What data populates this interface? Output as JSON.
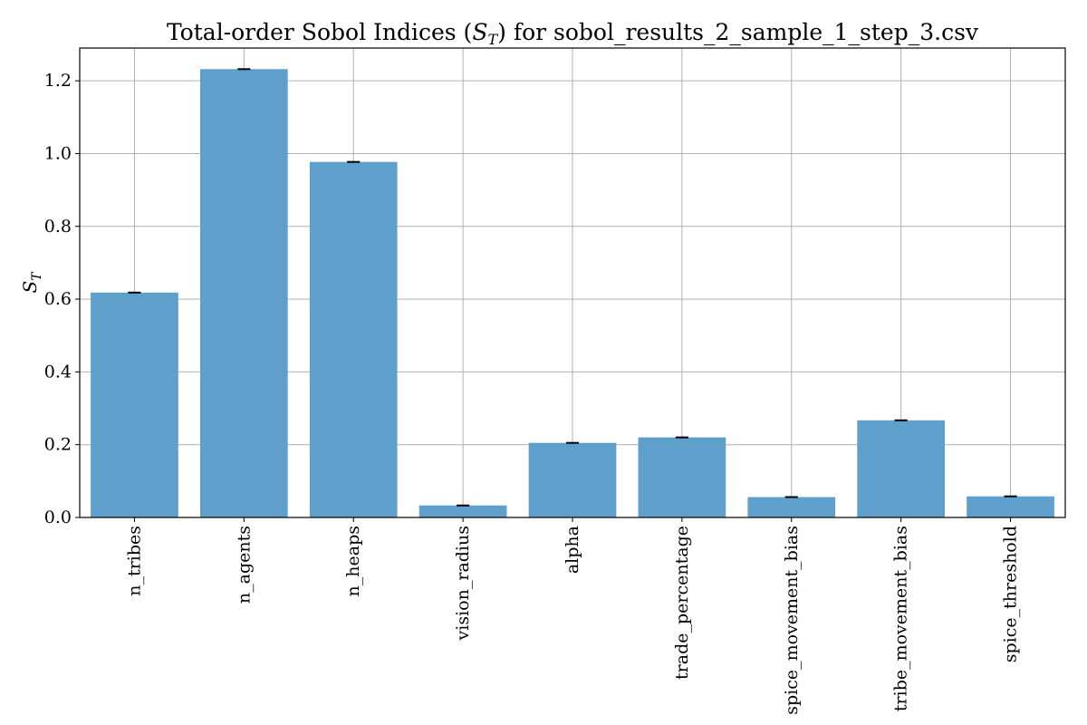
{
  "chart_data": {
    "type": "bar",
    "title": "Total-order Sobol Indices (S_T) for sobol_results_2_sample_1_step_3.csv",
    "ylabel": "S_T",
    "ylim": [
      0,
      1.29
    ],
    "yticks": [
      0.0,
      0.2,
      0.4,
      0.6,
      0.8,
      1.0,
      1.2
    ],
    "ytick_labels": [
      "0.0",
      "0.2",
      "0.4",
      "0.6",
      "0.8",
      "1.0",
      "1.2"
    ],
    "categories": [
      "n_tribes",
      "n_agents",
      "n_heaps",
      "vision_radius",
      "alpha",
      "trade_percentage",
      "spice_movement_bias",
      "tribe_movement_bias",
      "spice_threshold"
    ],
    "values": [
      0.618,
      1.232,
      0.977,
      0.033,
      0.205,
      0.22,
      0.056,
      0.267,
      0.058
    ],
    "errors": [
      0.001,
      0.001,
      0.001,
      0.001,
      0.001,
      0.001,
      0.001,
      0.001,
      0.001
    ],
    "grid": true,
    "bar_color": "#5f9fcb",
    "error_color": "#000000"
  }
}
